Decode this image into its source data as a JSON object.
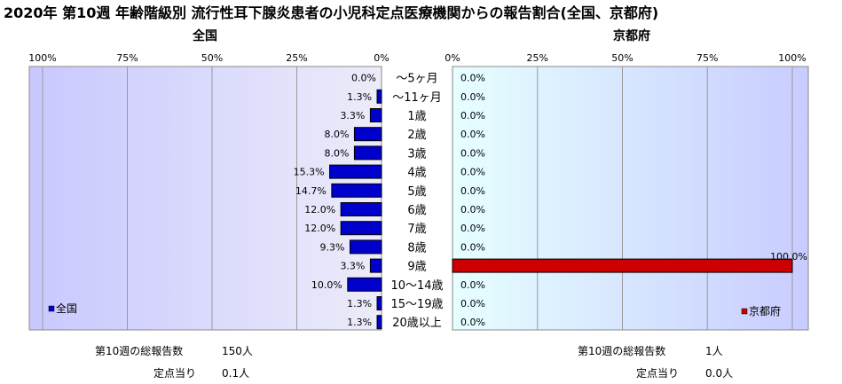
{
  "title": "2020年 第10週 年齢階級別 流行性耳下腺炎患者の小児科定点医療機関からの報告割合(全国、京都府)",
  "chart_data": [
    {
      "type": "bar",
      "orientation": "horizontal-reversed",
      "title": "全国",
      "categories": [
        "～5ヶ月",
        "～11ヶ月",
        "1歳",
        "2歳",
        "3歳",
        "4歳",
        "5歳",
        "6歳",
        "7歳",
        "8歳",
        "9歳",
        "10～14歳",
        "15～19歳",
        "20歳以上"
      ],
      "series": [
        {
          "name": "全国",
          "color": "#0000cc",
          "values": [
            0.0,
            1.3,
            3.3,
            8.0,
            8.0,
            15.3,
            14.7,
            12.0,
            12.0,
            9.3,
            3.3,
            10.0,
            1.3,
            1.3
          ]
        }
      ],
      "value_labels": [
        "0.0%",
        "1.3%",
        "3.3%",
        "8.0%",
        "8.0%",
        "15.3%",
        "14.7%",
        "12.0%",
        "12.0%",
        "9.3%",
        "3.3%",
        "10.0%",
        "1.3%",
        "1.3%"
      ],
      "xlim": [
        0,
        100
      ],
      "ticks": [
        "100%",
        "75%",
        "50%",
        "25%",
        "0%"
      ],
      "legend": "bottom-left",
      "grid": true
    },
    {
      "type": "bar",
      "orientation": "horizontal",
      "title": "京都府",
      "categories": [
        "～5ヶ月",
        "～11ヶ月",
        "1歳",
        "2歳",
        "3歳",
        "4歳",
        "5歳",
        "6歳",
        "7歳",
        "8歳",
        "9歳",
        "10～14歳",
        "15～19歳",
        "20歳以上"
      ],
      "series": [
        {
          "name": "京都府",
          "color": "#cc0000",
          "values": [
            0,
            0,
            0,
            0,
            0,
            0,
            0,
            0,
            0,
            0,
            100.0,
            0,
            0,
            0
          ]
        }
      ],
      "value_labels": [
        "0.0%",
        "0.0%",
        "0.0%",
        "0.0%",
        "0.0%",
        "0.0%",
        "0.0%",
        "0.0%",
        "0.0%",
        "0.0%",
        "100.0%",
        "0.0%",
        "0.0%",
        "0.0%"
      ],
      "xlim": [
        0,
        100
      ],
      "ticks": [
        "0%",
        "25%",
        "50%",
        "75%",
        "100%"
      ],
      "legend": "bottom-right",
      "grid": true
    }
  ],
  "footer": {
    "left": {
      "total_label": "第10週の総報告数",
      "total_value": "150人",
      "per_label": "定点当り",
      "per_value": "0.1人"
    },
    "right": {
      "total_label": "第10週の総報告数",
      "total_value": "1人",
      "per_label": "定点当り",
      "per_value": "0.0人"
    }
  }
}
